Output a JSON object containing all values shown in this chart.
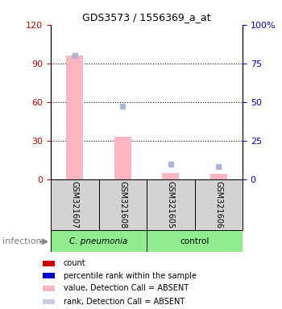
{
  "title": "GDS3573 / 1556369_a_at",
  "samples": [
    "GSM321607",
    "GSM321608",
    "GSM321605",
    "GSM321606"
  ],
  "bar_values_pink": [
    96,
    33,
    5,
    4
  ],
  "bar_values_blue_pct": [
    80,
    47,
    10,
    8
  ],
  "ylim_left": [
    0,
    120
  ],
  "ylim_right": [
    0,
    100
  ],
  "yticks_left": [
    0,
    30,
    60,
    90,
    120
  ],
  "yticks_right": [
    0,
    25,
    50,
    75,
    100
  ],
  "yticklabels_right": [
    "0",
    "25",
    "50",
    "75",
    "100%"
  ],
  "left_tick_color": "#cc0000",
  "right_tick_color": "#0000cc",
  "bar_color_pink": "#ffb6c1",
  "dot_color_blue_light": "#aab8d8",
  "legend_items": [
    {
      "color": "#cc0000",
      "label": "count"
    },
    {
      "color": "#0000cc",
      "label": "percentile rank within the sample"
    },
    {
      "color": "#ffb6c1",
      "label": "value, Detection Call = ABSENT"
    },
    {
      "color": "#c5cde8",
      "label": "rank, Detection Call = ABSENT"
    }
  ],
  "pneumonia_group_color": "#90ee90",
  "control_group_color": "#90ee90",
  "sample_bg_color": "#d3d3d3"
}
